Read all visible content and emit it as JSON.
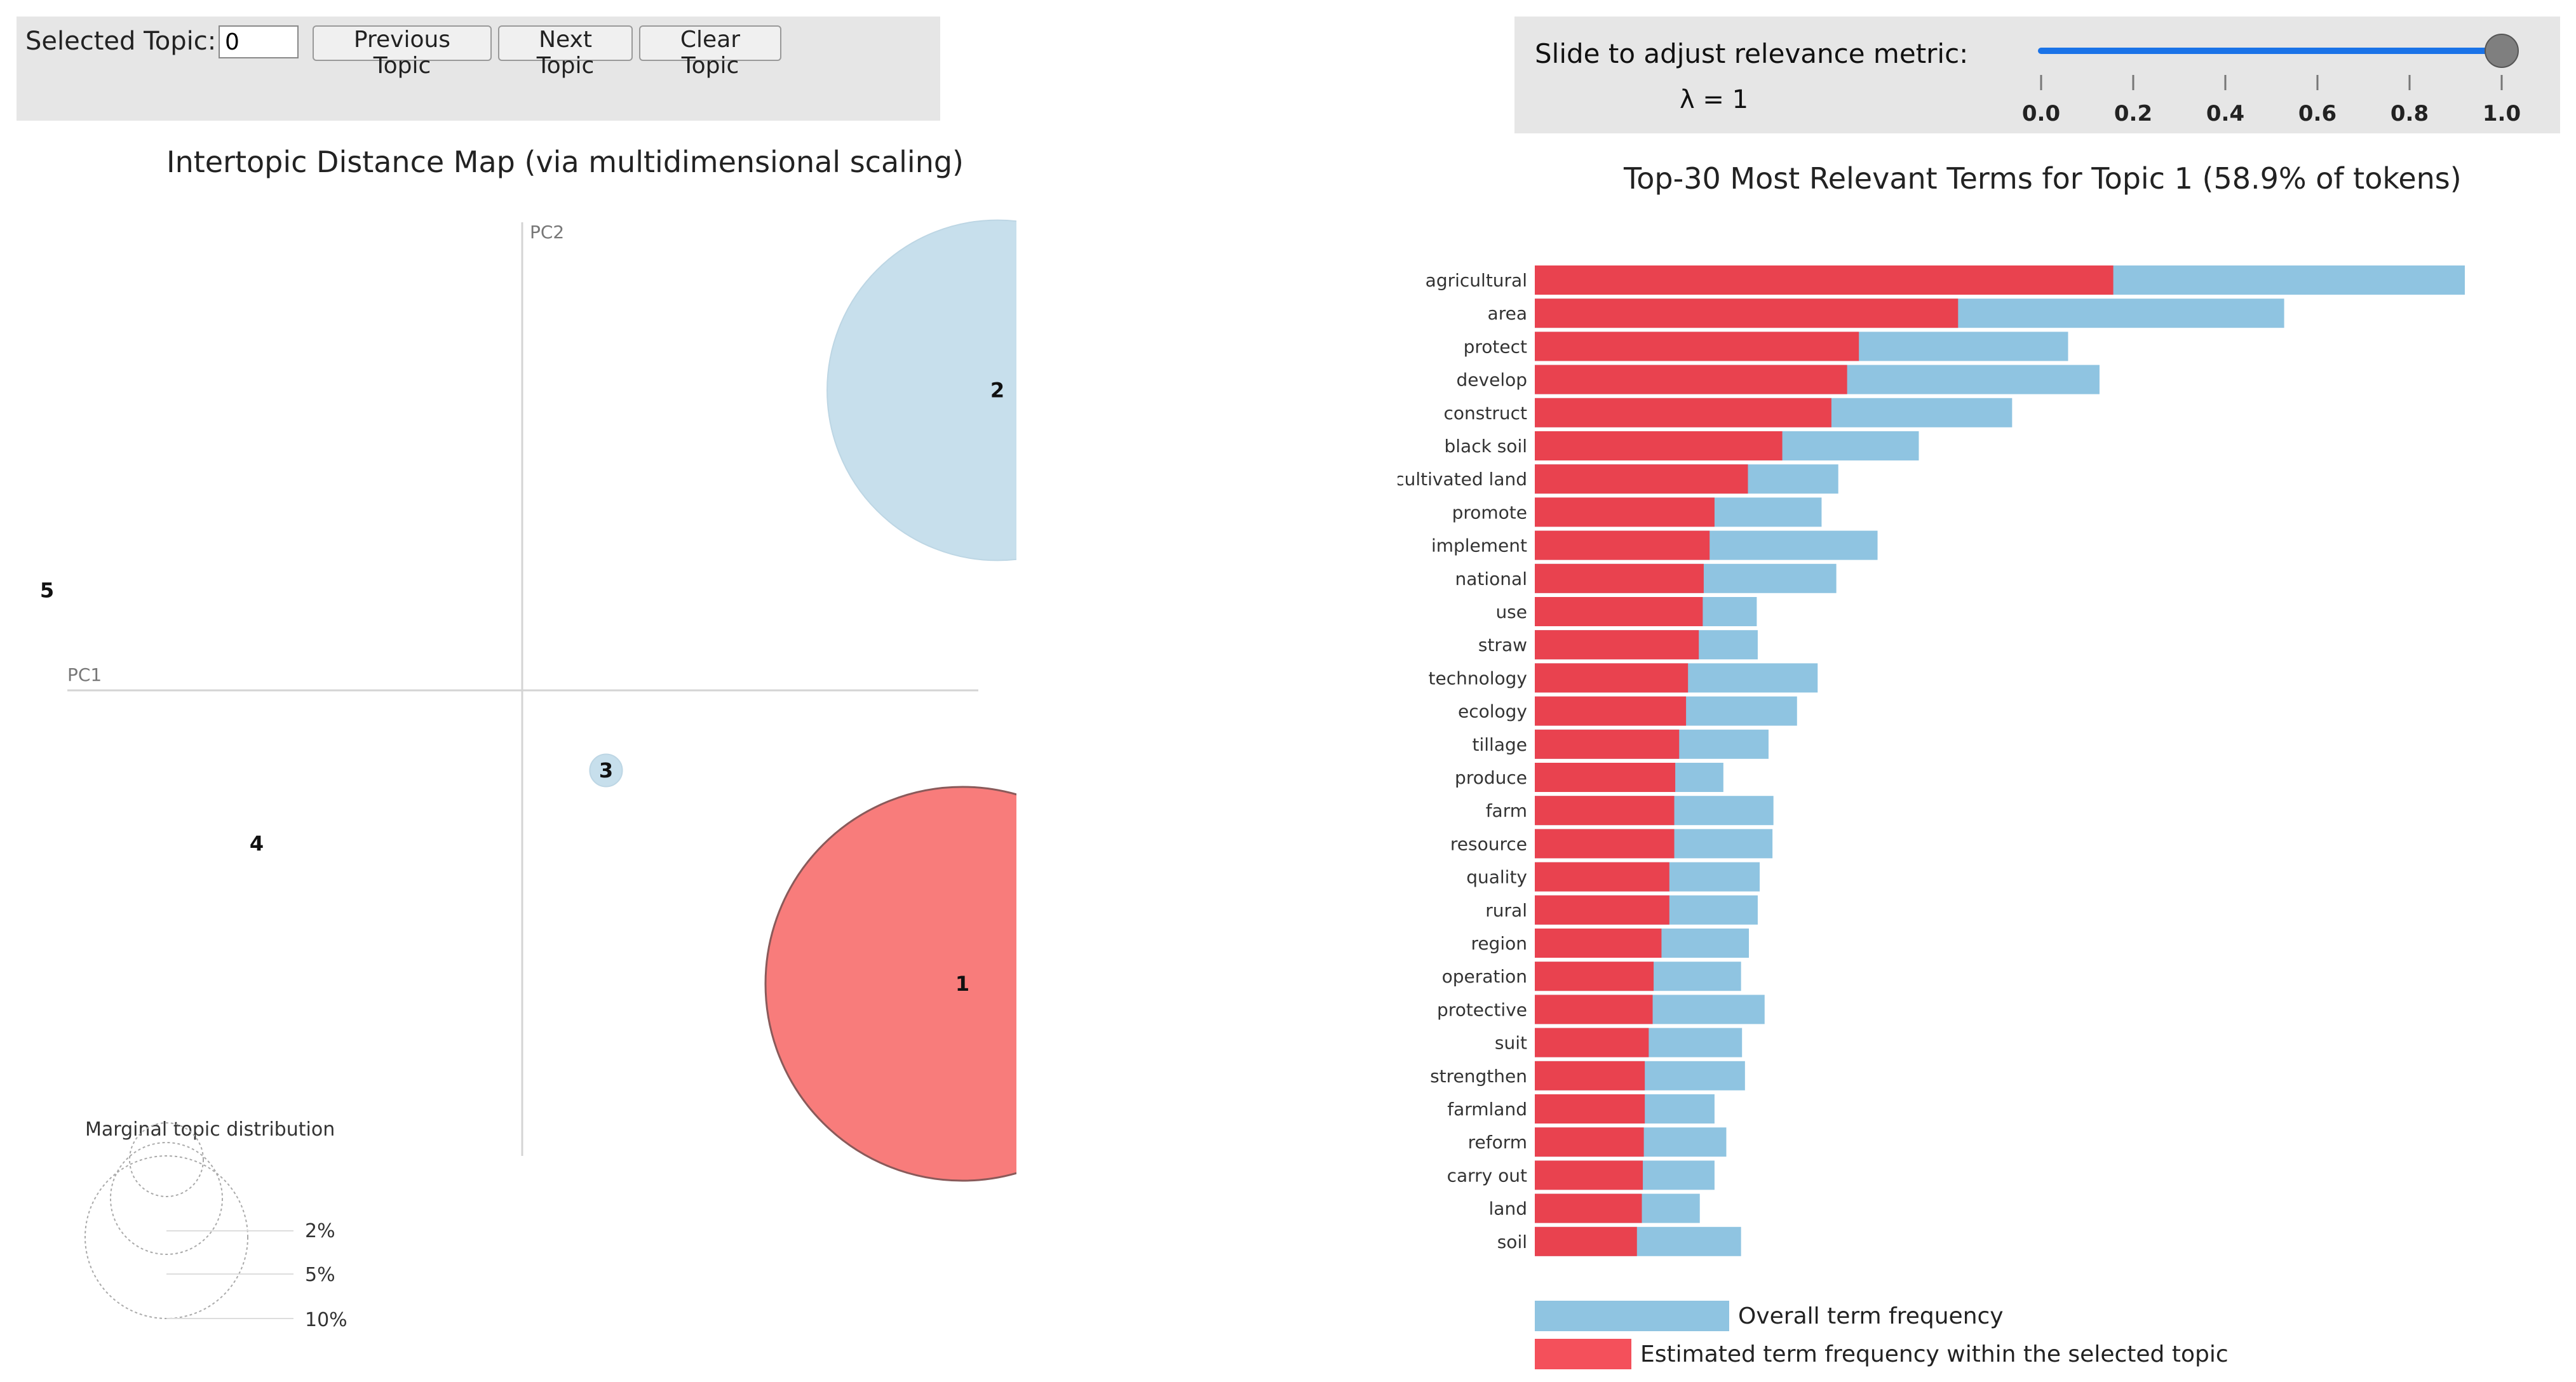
{
  "controls": {
    "selected_topic_label": "Selected Topic:",
    "selected_topic_value": "0",
    "prev_label": "Previous Topic",
    "next_label": "Next Topic",
    "clear_label": "Clear Topic"
  },
  "relevance": {
    "label": "Slide to adjust relevance metric:",
    "lambda_text": "λ = 1",
    "value": 1.0,
    "min": 0.0,
    "max": 1.0,
    "ticks": [
      "0.0",
      "0.2",
      "0.4",
      "0.6",
      "0.8",
      "1.0"
    ]
  },
  "colors": {
    "panel_bg": "#e6e6e6",
    "topic_blue": "#c7dfec",
    "topic_red": "#f87c7b",
    "bar_blue": "#8fc4e1",
    "bar_red": "#e9424f",
    "slider_accent": "#1a73e8"
  },
  "intertopic_map": {
    "title": "Intertopic Distance Map (via multidimensional scaling)",
    "pc1_label": "PC1",
    "pc2_label": "PC2",
    "topics": [
      {
        "id": "1",
        "pc1": 0.63,
        "pc2": -0.44,
        "marginal_pct": 58.9,
        "selected": true
      },
      {
        "id": "2",
        "pc1": 0.68,
        "pc2": 0.45,
        "marginal_pct": 44.0,
        "selected": false
      },
      {
        "id": "3",
        "pc1": 0.12,
        "pc2": -0.12,
        "marginal_pct": 0.4,
        "selected": false
      },
      {
        "id": "4",
        "pc1": -0.38,
        "pc2": -0.23,
        "marginal_pct": 0.0,
        "selected": false
      },
      {
        "id": "5",
        "pc1": -0.68,
        "pc2": 0.15,
        "marginal_pct": 0.0,
        "selected": false
      }
    ],
    "marginal": {
      "title": "Marginal topic distribution",
      "labels": [
        "2%",
        "5%",
        "10%"
      ]
    }
  },
  "chart_data": {
    "type": "bar",
    "orientation": "horizontal",
    "title": "Top-30 Most Relevant Terms for Topic 1 (58.9% of tokens)",
    "xlim": [
      0,
      1.0
    ],
    "categories": [
      "agricultural",
      "area",
      "protect",
      "develop",
      "construct",
      "black soil",
      "cultivated land",
      "promote",
      "implement",
      "national",
      "use",
      "straw",
      "technology",
      "ecology",
      "tillage",
      "produce",
      "farm",
      "resource",
      "quality",
      "rural",
      "region",
      "operation",
      "protective",
      "suit",
      "strengthen",
      "farmland",
      "reform",
      "carry out",
      "land",
      "soil"
    ],
    "series": [
      {
        "name": "Overall term frequency",
        "values": [
          1.0,
          0.763,
          0.543,
          0.575,
          0.486,
          0.391,
          0.309,
          0.292,
          0.349,
          0.307,
          0.226,
          0.227,
          0.288,
          0.267,
          0.238,
          0.192,
          0.243,
          0.242,
          0.229,
          0.227,
          0.218,
          0.21,
          0.234,
          0.211,
          0.214,
          0.183,
          0.195,
          0.183,
          0.168,
          0.21
        ]
      },
      {
        "name": "Estimated term frequency within the selected topic",
        "values": [
          0.589,
          0.431,
          0.33,
          0.318,
          0.302,
          0.252,
          0.217,
          0.183,
          0.178,
          0.172,
          0.171,
          0.167,
          0.156,
          0.154,
          0.147,
          0.143,
          0.142,
          0.142,
          0.137,
          0.137,
          0.129,
          0.121,
          0.12,
          0.116,
          0.112,
          0.112,
          0.111,
          0.11,
          0.109,
          0.104
        ]
      }
    ],
    "legend": [
      "Overall term frequency",
      "Estimated term frequency within the selected topic"
    ],
    "legend_position": "bottom-left"
  }
}
